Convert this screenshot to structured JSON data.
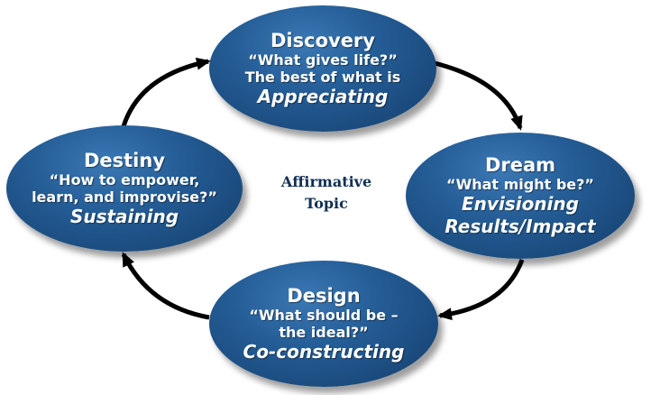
{
  "center": {
    "lines": [
      "Affirmative",
      "Topic"
    ]
  },
  "nodes": {
    "discovery": {
      "title": "Discovery",
      "lines": [
        "“What gives life?”",
        "The best of what is"
      ],
      "action": "Appreciating"
    },
    "dream": {
      "title": "Dream",
      "lines": [
        "“What might be?”"
      ],
      "action_lines": [
        "Envisioning",
        "Results/Impact"
      ]
    },
    "design": {
      "title": "Design",
      "lines": [
        "“What should be –",
        "the ideal?”"
      ],
      "action": "Co-constructing"
    },
    "destiny": {
      "title": "Destiny",
      "lines": [
        "“How to empower,",
        "learn, and improvise?”"
      ],
      "action": "Sustaining"
    }
  },
  "colors": {
    "node_fill_light": "#3b78b4",
    "node_fill_dark": "#143e6b",
    "arrow": "#000000",
    "center_text": "#0f2f55",
    "node_text": "#ffffff"
  },
  "icons": {
    "arrows": [
      "arrow-discovery-to-dream-icon",
      "arrow-dream-to-design-icon",
      "arrow-design-to-destiny-icon",
      "arrow-destiny-to-discovery-icon"
    ]
  }
}
